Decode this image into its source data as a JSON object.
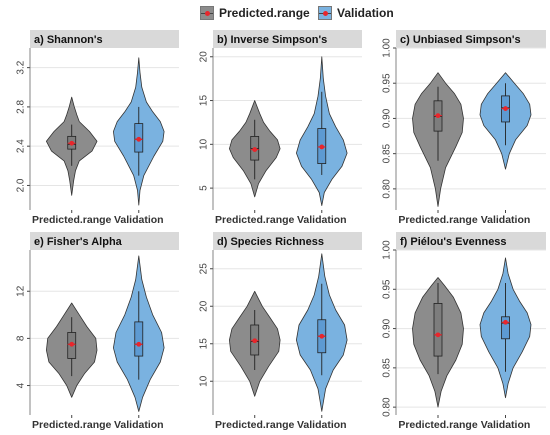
{
  "legend": {
    "items": [
      {
        "label": "Predicted.range",
        "color": "#8c8c8c"
      },
      {
        "label": "Validation",
        "color": "#7ab2e0"
      }
    ]
  },
  "colors": {
    "predicted": "#8c8c8c",
    "validation": "#7ab2e0",
    "box_predicted": "#7d7d7d",
    "box_validation": "#5d9ad2",
    "mean": "#e8262c",
    "strip": "#d9d9d9",
    "panel_bg": "#ffffff",
    "grid": "#e5e5e5"
  },
  "chart_data": [
    {
      "type": "violin",
      "title": "a) Shannon's",
      "categories": [
        "Predicted.range",
        "Validation"
      ],
      "ylim": [
        1.75,
        3.4
      ],
      "yticks": [
        2.0,
        2.4,
        2.8,
        3.2
      ],
      "ytick_labels": [
        "2.0",
        "2.4",
        "2.8",
        "3.2"
      ],
      "series": [
        {
          "name": "Predicted.range",
          "min": 1.9,
          "max": 2.9,
          "q1": 2.37,
          "median": 2.42,
          "q3": 2.5,
          "mean": 2.43,
          "whisker_low": 2.2,
          "whisker_high": 2.62,
          "density": [
            [
              1.9,
              0.0
            ],
            [
              2.05,
              0.08
            ],
            [
              2.15,
              0.15
            ],
            [
              2.25,
              0.3
            ],
            [
              2.35,
              0.8
            ],
            [
              2.45,
              1.0
            ],
            [
              2.55,
              0.7
            ],
            [
              2.65,
              0.3
            ],
            [
              2.72,
              0.2
            ],
            [
              2.8,
              0.1
            ],
            [
              2.9,
              0.0
            ]
          ]
        },
        {
          "name": "Validation",
          "min": 1.8,
          "max": 3.3,
          "q1": 2.34,
          "median": 2.47,
          "q3": 2.63,
          "mean": 2.47,
          "whisker_low": 2.1,
          "whisker_high": 2.8,
          "density": [
            [
              1.8,
              0.0
            ],
            [
              1.95,
              0.05
            ],
            [
              2.1,
              0.2
            ],
            [
              2.3,
              0.6
            ],
            [
              2.45,
              0.95
            ],
            [
              2.55,
              1.0
            ],
            [
              2.65,
              0.85
            ],
            [
              2.75,
              0.55
            ],
            [
              2.85,
              0.3
            ],
            [
              3.0,
              0.12
            ],
            [
              3.15,
              0.05
            ],
            [
              3.3,
              0.0
            ]
          ]
        }
      ]
    },
    {
      "type": "violin",
      "title": "b) Inverse Simpson's",
      "categories": [
        "Predicted.range",
        "Validation"
      ],
      "ylim": [
        2.5,
        21
      ],
      "yticks": [
        5,
        10,
        15,
        20
      ],
      "ytick_labels": [
        "5",
        "10",
        "15",
        "20"
      ],
      "series": [
        {
          "name": "Predicted.range",
          "min": 4.0,
          "max": 15.0,
          "q1": 8.2,
          "median": 9.5,
          "q3": 10.9,
          "mean": 9.4,
          "whisker_low": 6.0,
          "whisker_high": 12.8,
          "density": [
            [
              4.0,
              0.0
            ],
            [
              5.5,
              0.15
            ],
            [
              7.0,
              0.45
            ],
            [
              8.5,
              0.85
            ],
            [
              9.5,
              1.0
            ],
            [
              10.5,
              0.9
            ],
            [
              11.5,
              0.6
            ],
            [
              12.5,
              0.35
            ],
            [
              13.5,
              0.2
            ],
            [
              15.0,
              0.0
            ]
          ]
        },
        {
          "name": "Validation",
          "min": 3.0,
          "max": 20.0,
          "q1": 7.8,
          "median": 9.7,
          "q3": 11.8,
          "mean": 9.7,
          "whisker_low": 6.5,
          "whisker_high": 16.0,
          "density": [
            [
              3.0,
              0.0
            ],
            [
              4.5,
              0.1
            ],
            [
              6.0,
              0.4
            ],
            [
              7.5,
              0.8
            ],
            [
              9.0,
              1.0
            ],
            [
              10.5,
              0.85
            ],
            [
              12.0,
              0.55
            ],
            [
              13.5,
              0.3
            ],
            [
              15.5,
              0.15
            ],
            [
              17.5,
              0.06
            ],
            [
              20.0,
              0.0
            ]
          ]
        }
      ]
    },
    {
      "type": "violin",
      "title": "c) Unbiased Simpson's",
      "categories": [
        "Predicted.range",
        "Validation"
      ],
      "ylim": [
        0.77,
        1.0
      ],
      "yticks": [
        0.8,
        0.85,
        0.9,
        0.95,
        1.0
      ],
      "ytick_labels": [
        "0.80",
        "0.85",
        "0.90",
        "0.95",
        "1.00"
      ],
      "series": [
        {
          "name": "Predicted.range",
          "min": 0.775,
          "max": 0.965,
          "q1": 0.882,
          "median": 0.903,
          "q3": 0.925,
          "mean": 0.904,
          "whisker_low": 0.84,
          "whisker_high": 0.945,
          "density": [
            [
              0.775,
              0.0
            ],
            [
              0.8,
              0.1
            ],
            [
              0.83,
              0.3
            ],
            [
              0.86,
              0.7
            ],
            [
              0.88,
              0.95
            ],
            [
              0.9,
              1.0
            ],
            [
              0.92,
              0.9
            ],
            [
              0.935,
              0.65
            ],
            [
              0.95,
              0.3
            ],
            [
              0.965,
              0.0
            ]
          ]
        },
        {
          "name": "Validation",
          "min": 0.828,
          "max": 0.965,
          "q1": 0.895,
          "median": 0.915,
          "q3": 0.932,
          "mean": 0.914,
          "whisker_low": 0.862,
          "whisker_high": 0.95,
          "density": [
            [
              0.828,
              0.0
            ],
            [
              0.85,
              0.15
            ],
            [
              0.87,
              0.4
            ],
            [
              0.89,
              0.85
            ],
            [
              0.905,
              1.0
            ],
            [
              0.92,
              0.95
            ],
            [
              0.935,
              0.7
            ],
            [
              0.95,
              0.35
            ],
            [
              0.965,
              0.0
            ]
          ]
        }
      ]
    },
    {
      "type": "violin",
      "title": "e) Fisher's Alpha",
      "categories": [
        "Predicted.range",
        "Validation"
      ],
      "ylim": [
        1.5,
        15.5
      ],
      "yticks": [
        4,
        8,
        12
      ],
      "ytick_labels": [
        "4",
        "8",
        "12"
      ],
      "series": [
        {
          "name": "Predicted.range",
          "min": 3.0,
          "max": 11.0,
          "q1": 6.3,
          "median": 7.5,
          "q3": 8.5,
          "mean": 7.5,
          "whisker_low": 4.8,
          "whisker_high": 9.8,
          "density": [
            [
              3.0,
              0.0
            ],
            [
              4.0,
              0.2
            ],
            [
              5.0,
              0.5
            ],
            [
              6.0,
              0.9
            ],
            [
              7.0,
              1.0
            ],
            [
              8.0,
              0.95
            ],
            [
              9.0,
              0.6
            ],
            [
              10.0,
              0.3
            ],
            [
              11.0,
              0.0
            ]
          ]
        },
        {
          "name": "Validation",
          "min": 1.8,
          "max": 15.0,
          "q1": 6.5,
          "median": 7.5,
          "q3": 9.4,
          "mean": 7.5,
          "whisker_low": 4.5,
          "whisker_high": 12.0,
          "density": [
            [
              1.8,
              0.0
            ],
            [
              3.0,
              0.15
            ],
            [
              4.5,
              0.45
            ],
            [
              6.0,
              0.85
            ],
            [
              7.2,
              1.0
            ],
            [
              8.5,
              0.9
            ],
            [
              10.0,
              0.55
            ],
            [
              11.5,
              0.3
            ],
            [
              13.0,
              0.12
            ],
            [
              15.0,
              0.0
            ]
          ]
        }
      ]
    },
    {
      "type": "violin",
      "title": "d) Species Richness",
      "categories": [
        "Predicted.range",
        "Validation"
      ],
      "ylim": [
        5.5,
        27.5
      ],
      "yticks": [
        10,
        15,
        20,
        25
      ],
      "ytick_labels": [
        "10",
        "15",
        "20",
        "25"
      ],
      "series": [
        {
          "name": "Predicted.range",
          "min": 8.0,
          "max": 22.0,
          "q1": 13.5,
          "median": 15.3,
          "q3": 17.5,
          "mean": 15.4,
          "whisker_low": 11.5,
          "whisker_high": 19.5,
          "density": [
            [
              8.0,
              0.0
            ],
            [
              10.0,
              0.2
            ],
            [
              12.0,
              0.55
            ],
            [
              14.0,
              0.95
            ],
            [
              15.5,
              1.0
            ],
            [
              17.0,
              0.9
            ],
            [
              18.5,
              0.6
            ],
            [
              20.0,
              0.3
            ],
            [
              22.0,
              0.0
            ]
          ]
        },
        {
          "name": "Validation",
          "min": 6.0,
          "max": 27.0,
          "q1": 13.8,
          "median": 16.0,
          "q3": 18.2,
          "mean": 16.0,
          "whisker_low": 10.8,
          "whisker_high": 23.0,
          "density": [
            [
              6.0,
              0.0
            ],
            [
              9.0,
              0.15
            ],
            [
              11.5,
              0.45
            ],
            [
              13.5,
              0.85
            ],
            [
              15.5,
              1.0
            ],
            [
              17.5,
              0.9
            ],
            [
              19.5,
              0.55
            ],
            [
              21.5,
              0.3
            ],
            [
              24.0,
              0.12
            ],
            [
              27.0,
              0.0
            ]
          ]
        }
      ]
    },
    {
      "type": "violin",
      "title": "f) Piélou's Evenness",
      "categories": [
        "Predicted.range",
        "Validation"
      ],
      "ylim": [
        0.79,
        1.0
      ],
      "yticks": [
        0.8,
        0.85,
        0.9,
        0.95,
        1.0
      ],
      "ytick_labels": [
        "0.80",
        "0.85",
        "0.90",
        "0.95",
        "1.00"
      ],
      "series": [
        {
          "name": "Predicted.range",
          "min": 0.8,
          "max": 0.965,
          "q1": 0.865,
          "median": 0.892,
          "q3": 0.932,
          "mean": 0.892,
          "whisker_low": 0.842,
          "whisker_high": 0.958,
          "density": [
            [
              0.8,
              0.0
            ],
            [
              0.82,
              0.12
            ],
            [
              0.84,
              0.35
            ],
            [
              0.86,
              0.7
            ],
            [
              0.88,
              0.95
            ],
            [
              0.9,
              1.0
            ],
            [
              0.92,
              0.9
            ],
            [
              0.94,
              0.6
            ],
            [
              0.955,
              0.25
            ],
            [
              0.965,
              0.0
            ]
          ]
        },
        {
          "name": "Validation",
          "min": 0.812,
          "max": 0.99,
          "q1": 0.887,
          "median": 0.907,
          "q3": 0.915,
          "mean": 0.908,
          "whisker_low": 0.845,
          "whisker_high": 0.958,
          "density": [
            [
              0.812,
              0.0
            ],
            [
              0.83,
              0.1
            ],
            [
              0.85,
              0.3
            ],
            [
              0.87,
              0.65
            ],
            [
              0.89,
              0.95
            ],
            [
              0.905,
              1.0
            ],
            [
              0.92,
              0.85
            ],
            [
              0.935,
              0.55
            ],
            [
              0.95,
              0.3
            ],
            [
              0.97,
              0.1
            ],
            [
              0.99,
              0.0
            ]
          ]
        }
      ]
    }
  ]
}
